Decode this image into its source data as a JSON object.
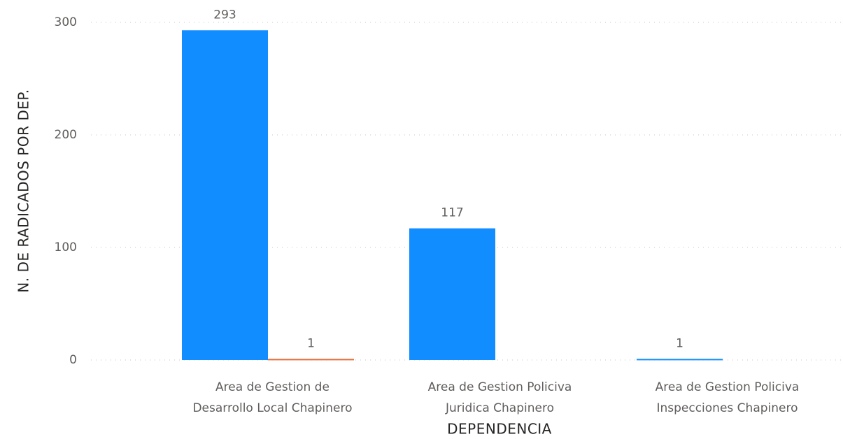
{
  "chart_data": {
    "type": "bar",
    "x_label": "DEPENDENCIA",
    "y_label": "N. DE RADICADOS POR DEP.",
    "categories": [
      [
        "Area de Gestion de",
        "Desarrollo Local Chapinero"
      ],
      [
        "Area de Gestion Policiva",
        "Juridica Chapinero"
      ],
      [
        "Area de Gestion Policiva",
        "Inspecciones Chapinero"
      ]
    ],
    "series": [
      {
        "color": "#118dff",
        "values": [
          293,
          117,
          1
        ]
      },
      {
        "color": "#e66c37",
        "values": [
          1,
          null,
          null
        ]
      }
    ],
    "ylim": [
      0,
      300
    ],
    "yticks": [
      0,
      100,
      200,
      300
    ],
    "grid": true
  }
}
